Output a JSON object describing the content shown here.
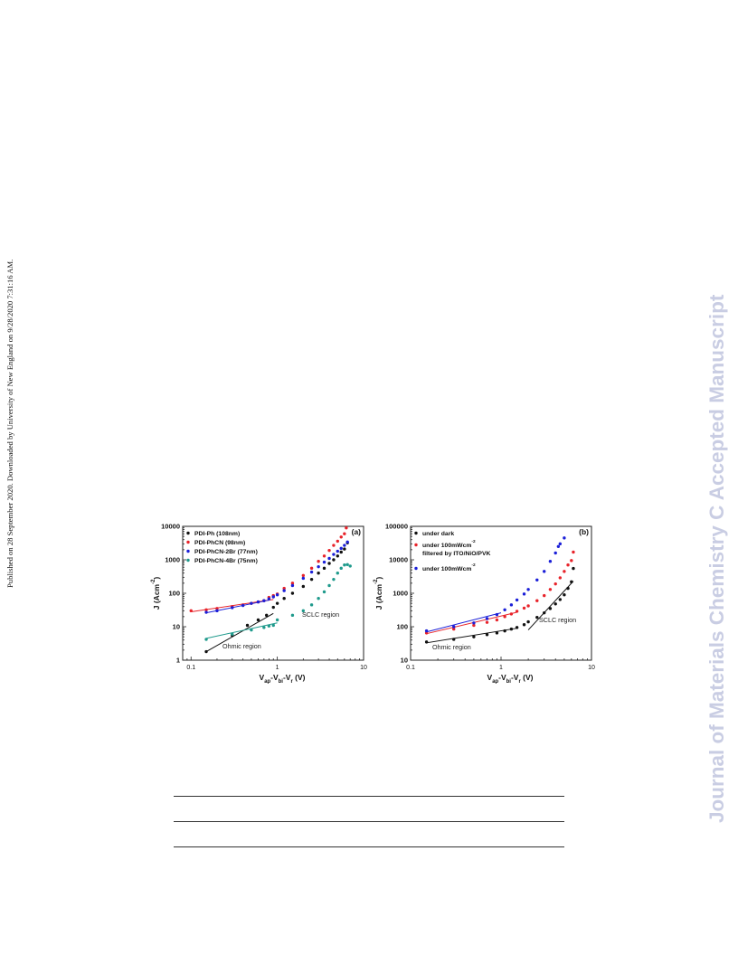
{
  "side_note": "Published on 28 September 2020. Downloaded by University of New England on 9/28/2020 7:31:16 AM.",
  "watermark": "Journal of Materials Chemistry C Accepted Manuscript",
  "colors": {
    "watermark": "#c9cde3",
    "black": "#111111",
    "red": "#e8232a",
    "blue": "#1b1fd8",
    "teal": "#1f9a8c"
  },
  "chart_data": [
    {
      "type": "scatter",
      "panel_label": "(a)",
      "xlabel": "V_ap-V_bi-V_r (V)",
      "ylabel": "J (Acm^-2)",
      "x_scale": "log",
      "y_scale": "log",
      "xlim": [
        0.08,
        10
      ],
      "ylim": [
        1,
        10000
      ],
      "x_ticks": [
        "0.1",
        "1",
        "10"
      ],
      "y_ticks": [
        "1",
        "10",
        "100",
        "1000",
        "10000"
      ],
      "legend_position": "top-left",
      "annotations": [
        "SCLC region",
        "Ohmic region"
      ],
      "series": [
        {
          "name": "PDI-Ph (108nm)",
          "color": "#111111",
          "points": [
            [
              0.15,
              1.8
            ],
            [
              0.3,
              5.5
            ],
            [
              0.45,
              11
            ],
            [
              0.6,
              16
            ],
            [
              0.75,
              22
            ],
            [
              0.9,
              38
            ],
            [
              1.0,
              50
            ],
            [
              1.2,
              70
            ],
            [
              1.5,
              100
            ],
            [
              2,
              160
            ],
            [
              2.5,
              260
            ],
            [
              3,
              400
            ],
            [
              3.5,
              560
            ],
            [
              4,
              780
            ],
            [
              4.5,
              1000
            ],
            [
              5,
              1300
            ],
            [
              5.5,
              1700
            ],
            [
              6,
              2100
            ],
            [
              6.5,
              3200
            ]
          ]
        },
        {
          "name": "PDI-PhCN (98nm)",
          "color": "#e8232a",
          "points": [
            [
              0.1,
              30
            ],
            [
              0.15,
              32
            ],
            [
              0.2,
              35
            ],
            [
              0.3,
              40
            ],
            [
              0.4,
              45
            ],
            [
              0.5,
              50
            ],
            [
              0.6,
              55
            ],
            [
              0.7,
              60
            ],
            [
              0.8,
              75
            ],
            [
              0.9,
              85
            ],
            [
              1.0,
              95
            ],
            [
              1.2,
              140
            ],
            [
              1.5,
              200
            ],
            [
              2,
              340
            ],
            [
              2.5,
              560
            ],
            [
              3,
              900
            ],
            [
              3.5,
              1300
            ],
            [
              4,
              1900
            ],
            [
              4.5,
              2700
            ],
            [
              5,
              3600
            ],
            [
              5.5,
              4800
            ],
            [
              6,
              6000
            ],
            [
              6.3,
              9000
            ]
          ]
        },
        {
          "name": "PDI-PhCN-2Br (77nm)",
          "color": "#1b1fd8",
          "points": [
            [
              0.15,
              27
            ],
            [
              0.2,
              30
            ],
            [
              0.3,
              37
            ],
            [
              0.4,
              43
            ],
            [
              0.5,
              50
            ],
            [
              0.6,
              55
            ],
            [
              0.7,
              60
            ],
            [
              0.8,
              68
            ],
            [
              0.9,
              78
            ],
            [
              1.0,
              90
            ],
            [
              1.2,
              120
            ],
            [
              1.5,
              170
            ],
            [
              2,
              280
            ],
            [
              2.5,
              430
            ],
            [
              3,
              620
            ],
            [
              3.5,
              850
            ],
            [
              4,
              1100
            ],
            [
              4.5,
              1450
            ],
            [
              5,
              1800
            ],
            [
              5.5,
              2200
            ],
            [
              6,
              2700
            ],
            [
              6.5,
              3400
            ]
          ]
        },
        {
          "name": "PDI-PhCN-4Br (75nm)",
          "color": "#1f9a8c",
          "points": [
            [
              0.15,
              4.2
            ],
            [
              0.3,
              6
            ],
            [
              0.5,
              8
            ],
            [
              0.7,
              9.5
            ],
            [
              0.8,
              10.5
            ],
            [
              0.9,
              11
            ],
            [
              1.0,
              16
            ],
            [
              1.5,
              22
            ],
            [
              2,
              30
            ],
            [
              2.5,
              45
            ],
            [
              3,
              70
            ],
            [
              3.5,
              110
            ],
            [
              4,
              170
            ],
            [
              4.5,
              260
            ],
            [
              5,
              400
            ],
            [
              5.5,
              560
            ],
            [
              6,
              700
            ],
            [
              6.5,
              720
            ],
            [
              7,
              650
            ]
          ]
        }
      ]
    },
    {
      "type": "scatter",
      "panel_label": "(b)",
      "xlabel": "V_ap-V_bi-V_r (V)",
      "ylabel": "J (Acm^-2)",
      "x_scale": "log",
      "y_scale": "log",
      "xlim": [
        0.1,
        10
      ],
      "ylim": [
        10,
        100000
      ],
      "x_ticks": [
        "0.1",
        "1",
        "10"
      ],
      "y_ticks": [
        "10",
        "100",
        "1000",
        "10000",
        "100000"
      ],
      "legend_position": "top-left",
      "annotations": [
        "SCLC region",
        "Ohmic region"
      ],
      "series": [
        {
          "name": "under dark",
          "color": "#111111",
          "points": [
            [
              0.15,
              35
            ],
            [
              0.3,
              42
            ],
            [
              0.5,
              50
            ],
            [
              0.7,
              58
            ],
            [
              0.9,
              65
            ],
            [
              1.1,
              75
            ],
            [
              1.3,
              85
            ],
            [
              1.5,
              95
            ],
            [
              1.8,
              115
            ],
            [
              2,
              140
            ],
            [
              2.5,
              190
            ],
            [
              3,
              260
            ],
            [
              3.5,
              350
            ],
            [
              4,
              480
            ],
            [
              4.5,
              650
            ],
            [
              5,
              900
            ],
            [
              5.5,
              1400
            ],
            [
              6,
              2200
            ],
            [
              6.3,
              5500
            ]
          ]
        },
        {
          "name": "under 100mWcm^-2 filtered by ITO/NiO/PVK",
          "color": "#e8232a",
          "points": [
            [
              0.15,
              65
            ],
            [
              0.3,
              85
            ],
            [
              0.5,
              110
            ],
            [
              0.7,
              135
            ],
            [
              0.9,
              160
            ],
            [
              1.1,
              200
            ],
            [
              1.3,
              240
            ],
            [
              1.5,
              290
            ],
            [
              1.8,
              360
            ],
            [
              2,
              420
            ],
            [
              2.5,
              600
            ],
            [
              3,
              850
            ],
            [
              3.5,
              1300
            ],
            [
              4,
              1900
            ],
            [
              4.5,
              2900
            ],
            [
              5,
              4500
            ],
            [
              5.5,
              7000
            ],
            [
              6,
              9500
            ],
            [
              6.3,
              17000
            ]
          ]
        },
        {
          "name": "under 100mWcm^-2",
          "color": "#1b1fd8",
          "points": [
            [
              0.15,
              75
            ],
            [
              0.3,
              100
            ],
            [
              0.5,
              130
            ],
            [
              0.7,
              175
            ],
            [
              0.9,
              230
            ],
            [
              1.1,
              320
            ],
            [
              1.3,
              450
            ],
            [
              1.5,
              630
            ],
            [
              1.8,
              950
            ],
            [
              2,
              1300
            ],
            [
              2.5,
              2500
            ],
            [
              3,
              4500
            ],
            [
              3.5,
              9000
            ],
            [
              4,
              16000
            ],
            [
              4.3,
              25000
            ],
            [
              4.5,
              30000
            ],
            [
              5,
              45000
            ]
          ]
        }
      ]
    }
  ]
}
